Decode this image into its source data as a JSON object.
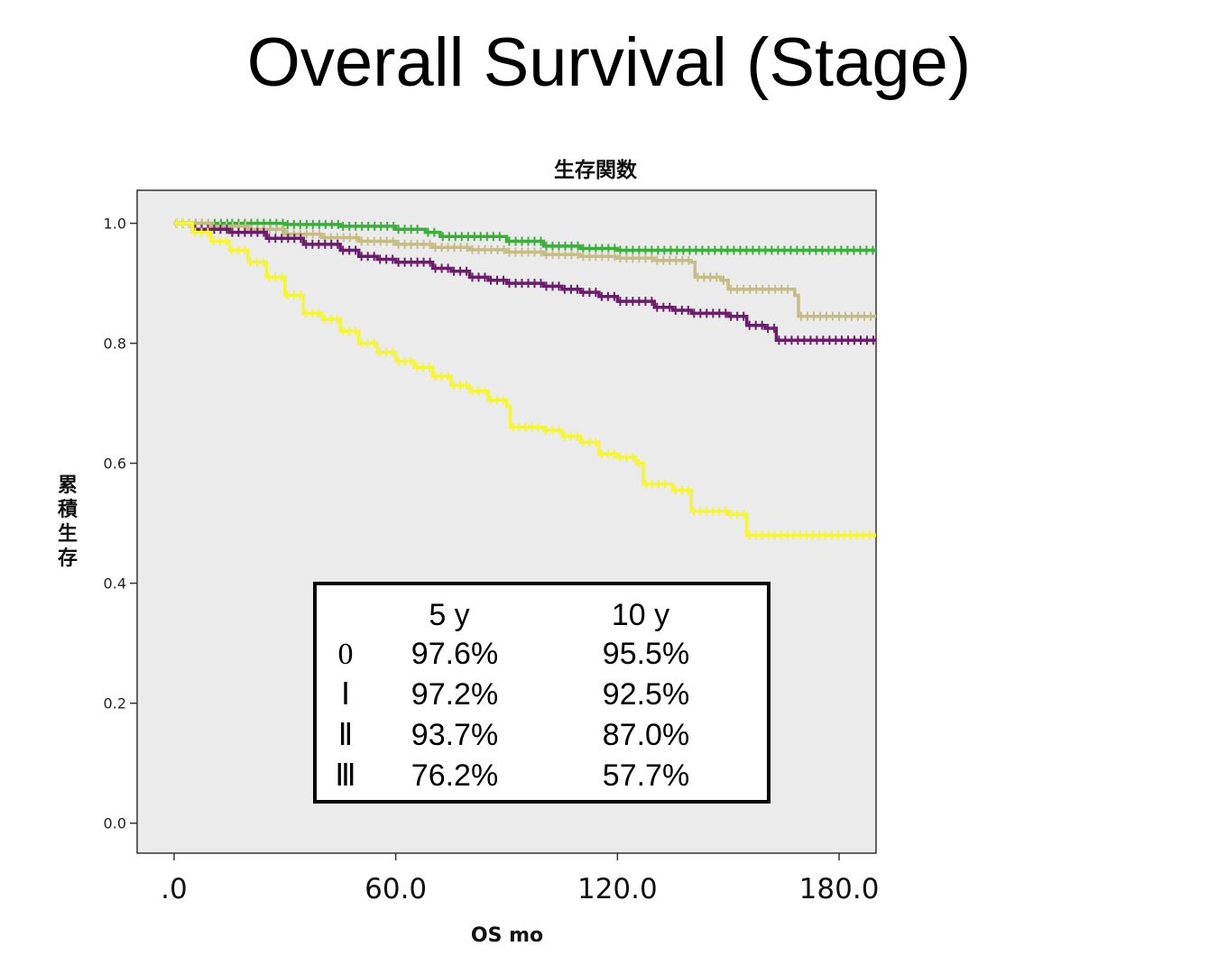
{
  "slide": {
    "title": "Overall Survival (Stage)"
  },
  "chart_data": {
    "type": "line",
    "subtype": "kaplan-meier step",
    "title": "生存関数",
    "xlabel": "OS mo",
    "ylabel": "累積生存",
    "xlim": [
      -10,
      190
    ],
    "ylim": [
      -0.05,
      1.055
    ],
    "x_ticks": [
      0,
      60,
      120,
      180
    ],
    "x_tick_labels": [
      ".0",
      "60.0",
      "120.0",
      "180.0"
    ],
    "y_ticks": [
      0.0,
      0.2,
      0.4,
      0.6,
      0.8,
      1.0
    ],
    "y_tick_labels": [
      "0.0",
      "0.2",
      "0.4",
      "0.6",
      "0.8",
      "1.0"
    ],
    "plot_background": "#ebebeb",
    "grid": false,
    "legend": "none",
    "series": [
      {
        "color": "#3dad3d",
        "points": [
          [
            0,
            1.0
          ],
          [
            15,
            1.0
          ],
          [
            30,
            0.998
          ],
          [
            45,
            0.995
          ],
          [
            60,
            0.99
          ],
          [
            68,
            0.985
          ],
          [
            72,
            0.978
          ],
          [
            90,
            0.97
          ],
          [
            100,
            0.962
          ],
          [
            110,
            0.958
          ],
          [
            120,
            0.955
          ],
          [
            190,
            0.955
          ]
        ]
      },
      {
        "color": "#c8bc86",
        "points": [
          [
            0,
            1.0
          ],
          [
            10,
            0.995
          ],
          [
            20,
            0.99
          ],
          [
            30,
            0.982
          ],
          [
            40,
            0.976
          ],
          [
            50,
            0.97
          ],
          [
            60,
            0.965
          ],
          [
            70,
            0.96
          ],
          [
            80,
            0.956
          ],
          [
            90,
            0.952
          ],
          [
            100,
            0.948
          ],
          [
            110,
            0.945
          ],
          [
            120,
            0.942
          ],
          [
            130,
            0.938
          ],
          [
            140,
            0.935
          ],
          [
            141,
            0.91
          ],
          [
            148,
            0.905
          ],
          [
            150,
            0.89
          ],
          [
            168,
            0.88
          ],
          [
            169,
            0.845
          ],
          [
            190,
            0.845
          ]
        ]
      },
      {
        "color": "#6b1c6b",
        "points": [
          [
            0,
            1.0
          ],
          [
            5,
            0.99
          ],
          [
            15,
            0.985
          ],
          [
            25,
            0.975
          ],
          [
            35,
            0.965
          ],
          [
            45,
            0.955
          ],
          [
            50,
            0.945
          ],
          [
            55,
            0.94
          ],
          [
            60,
            0.935
          ],
          [
            70,
            0.925
          ],
          [
            75,
            0.92
          ],
          [
            80,
            0.91
          ],
          [
            85,
            0.905
          ],
          [
            90,
            0.9
          ],
          [
            100,
            0.895
          ],
          [
            105,
            0.89
          ],
          [
            110,
            0.885
          ],
          [
            115,
            0.878
          ],
          [
            120,
            0.87
          ],
          [
            130,
            0.86
          ],
          [
            135,
            0.855
          ],
          [
            140,
            0.85
          ],
          [
            150,
            0.845
          ],
          [
            155,
            0.83
          ],
          [
            160,
            0.825
          ],
          [
            163,
            0.805
          ],
          [
            180,
            0.805
          ],
          [
            190,
            0.805
          ]
        ]
      },
      {
        "color": "#f5f53c",
        "points": [
          [
            0,
            1.0
          ],
          [
            5,
            0.985
          ],
          [
            10,
            0.97
          ],
          [
            15,
            0.955
          ],
          [
            20,
            0.935
          ],
          [
            25,
            0.91
          ],
          [
            30,
            0.88
          ],
          [
            35,
            0.85
          ],
          [
            40,
            0.84
          ],
          [
            45,
            0.82
          ],
          [
            50,
            0.8
          ],
          [
            55,
            0.785
          ],
          [
            60,
            0.77
          ],
          [
            65,
            0.76
          ],
          [
            70,
            0.745
          ],
          [
            75,
            0.73
          ],
          [
            80,
            0.72
          ],
          [
            85,
            0.705
          ],
          [
            90,
            0.695
          ],
          [
            91,
            0.66
          ],
          [
            100,
            0.655
          ],
          [
            105,
            0.645
          ],
          [
            110,
            0.635
          ],
          [
            115,
            0.615
          ],
          [
            120,
            0.61
          ],
          [
            125,
            0.6
          ],
          [
            127,
            0.565
          ],
          [
            135,
            0.555
          ],
          [
            140,
            0.52
          ],
          [
            150,
            0.515
          ],
          [
            155,
            0.48
          ],
          [
            190,
            0.48
          ]
        ]
      }
    ],
    "table": {
      "headers": [
        "",
        "5 y",
        "10 y"
      ],
      "rows": [
        [
          "0",
          "97.6%",
          "95.5%"
        ],
        [
          "Ⅰ",
          "97.2%",
          "92.5%"
        ],
        [
          "Ⅱ",
          "93.7%",
          "87.0%"
        ],
        [
          "Ⅲ",
          "76.2%",
          "57.7%"
        ]
      ]
    }
  }
}
